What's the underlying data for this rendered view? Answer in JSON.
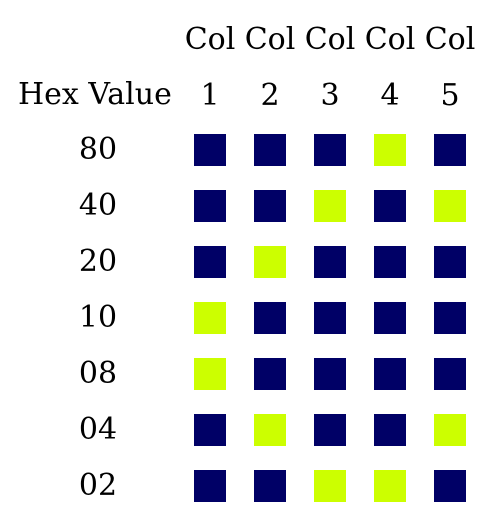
{
  "header": {
    "hex_label": "Hex Value",
    "columns": [
      {
        "line1": "Col",
        "line2": "1"
      },
      {
        "line1": "Col",
        "line2": "2"
      },
      {
        "line1": "Col",
        "line2": "3"
      },
      {
        "line1": "Col",
        "line2": "4"
      },
      {
        "line1": "Col",
        "line2": "5"
      }
    ]
  },
  "colors": {
    "off": "#000066",
    "on": "#ccff00"
  },
  "rows": [
    {
      "hex": "80",
      "cells": [
        0,
        0,
        0,
        1,
        0
      ]
    },
    {
      "hex": "40",
      "cells": [
        0,
        0,
        1,
        0,
        1
      ]
    },
    {
      "hex": "20",
      "cells": [
        0,
        1,
        0,
        0,
        0
      ]
    },
    {
      "hex": "10",
      "cells": [
        1,
        0,
        0,
        0,
        0
      ]
    },
    {
      "hex": "08",
      "cells": [
        1,
        0,
        0,
        0,
        0
      ]
    },
    {
      "hex": "04",
      "cells": [
        0,
        1,
        0,
        0,
        1
      ]
    },
    {
      "hex": "02",
      "cells": [
        0,
        0,
        1,
        1,
        0
      ]
    }
  ]
}
